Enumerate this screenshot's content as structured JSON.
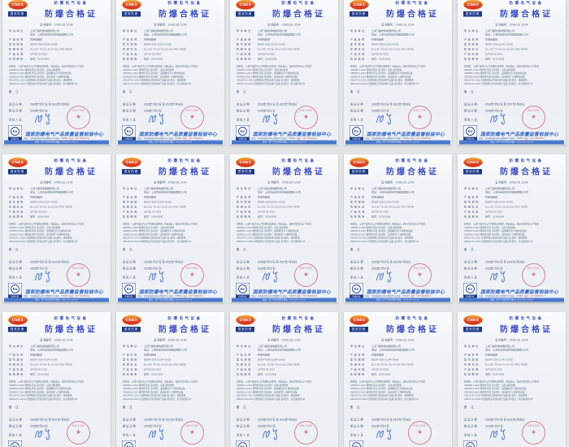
{
  "grid": {
    "rows": 3,
    "columns": 5,
    "page_count": 15
  },
  "colors": {
    "title_blue": "#3646c3",
    "seal_red": "#d04a6a",
    "signature_blue": "#5b82d6",
    "logo_red": "#d63a22",
    "logo_gold": "#f0c768",
    "navy": "#1d3a86",
    "footer_blue": "#2e62c8"
  },
  "certificate": {
    "agency": {
      "logo_text": "CNEX",
      "logo_caption": "国家防爆"
    },
    "header": {
      "supertitle": "防爆电气设备",
      "title": "防爆合格证"
    },
    "cert_no": {
      "label": "证书编号：",
      "value": "CNEx16.1234"
    },
    "fields": [
      {
        "label": "申请单位",
        "value": "上海飞策防爆电器有限公司",
        "value2": "地址：上海市嘉定区安亭镇园国路215号"
      },
      {
        "label": "产品名称",
        "value": "防爆电磁阀",
        "value2": ""
      },
      {
        "label": "型号规格",
        "value": "BDMF-25B  DC24V    DN25",
        "value2": ""
      },
      {
        "label": "防爆标志",
        "value": "Ex d ⅡC T6 Gb / Ex tD A21 IP65 T80℃",
        "value2": ""
      },
      {
        "label": "产品标准",
        "value": "Q/FCB 02-2015",
        "value2": ""
      },
      {
        "label": "检验报告",
        "value": "编号：2016-0506",
        "value2": ""
      }
    ],
    "notice": {
      "intro": "经检验，上述产品符合以下防爆标准要求，特发此证。使用时须注意以下事项：",
      "lines": [
        "GB3836.1-2010 爆炸性环境 第1部分：设备 通用要求",
        "GB3836.2-2010 爆炸性环境 第2部分：由隔爆外壳“d”保护的设备",
        "GB3836.9-2014 爆炸性环境 第9部分：由浇封型“m”保护的设备",
        "GB12476.1-2013 可燃性粉尘环境用电气设备 第1部分：通用要求",
        "GB12476.5-2013 可燃性粉尘环境用电气设备 第5部分：外壳保护型“tD”"
      ]
    },
    "remark_label": "备  注",
    "dates": {
      "issue": {
        "label": "发证日期",
        "value": "2016年7月27日 至 2021年7月26日"
      },
      "renew": {
        "label": "换证日期",
        "value": "2016年7月27日"
      }
    },
    "approver_label": "审批人员",
    "stamp": {
      "caption": "检验专用章",
      "star": "★"
    },
    "footer": {
      "ex_symbol": "Ex",
      "ex_caption": "防爆检验",
      "center_name": "国家防爆电气产品质量监督检验中心",
      "contact_address": "地址：河南省南阳市中州西路83号  邮编：473008",
      "contact_phone": "电话：0377-63239712",
      "band_text": "传真：0377-63226050  网址：",
      "band_url": "www.cnex.com.cn"
    }
  }
}
